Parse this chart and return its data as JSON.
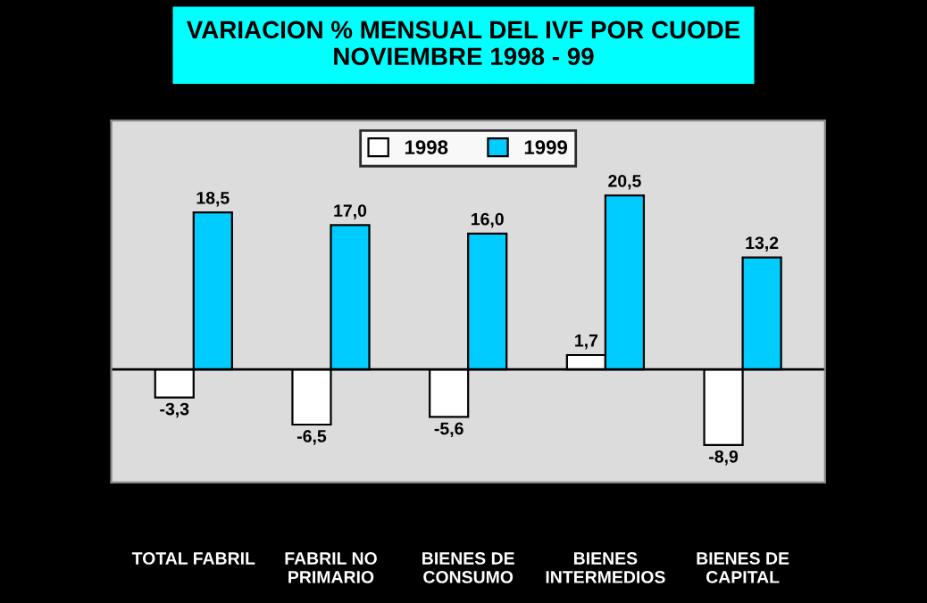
{
  "chart_data": {
    "type": "bar",
    "title": "VARIACION % MENSUAL DEL IVF POR CUODE\nNOVIEMBRE 1998 - 99",
    "categories": [
      "TOTAL FABRIL",
      "FABRIL NO\nPRIMARIO",
      "BIENES DE\nCONSUMO",
      "BIENES\nINTERMEDIOS",
      "BIENES DE\nCAPITAL"
    ],
    "series": [
      {
        "name": "1998",
        "color": "#ffffff",
        "values": [
          -3.3,
          -6.5,
          -5.6,
          1.7,
          -8.9
        ],
        "value_labels": [
          "-3,3",
          "-6,5",
          "-5,6",
          "1,7",
          "-8,9"
        ]
      },
      {
        "name": "1999",
        "color": "#00ccff",
        "values": [
          18.5,
          17.0,
          16.0,
          20.5,
          13.2
        ],
        "value_labels": [
          "18,5",
          "17,0",
          "16,0",
          "20,5",
          "13,2"
        ]
      }
    ],
    "ref_lines": [
      {
        "axis": "y",
        "value": 0,
        "color": "#000000"
      }
    ],
    "legend": "top",
    "grid": false
  }
}
